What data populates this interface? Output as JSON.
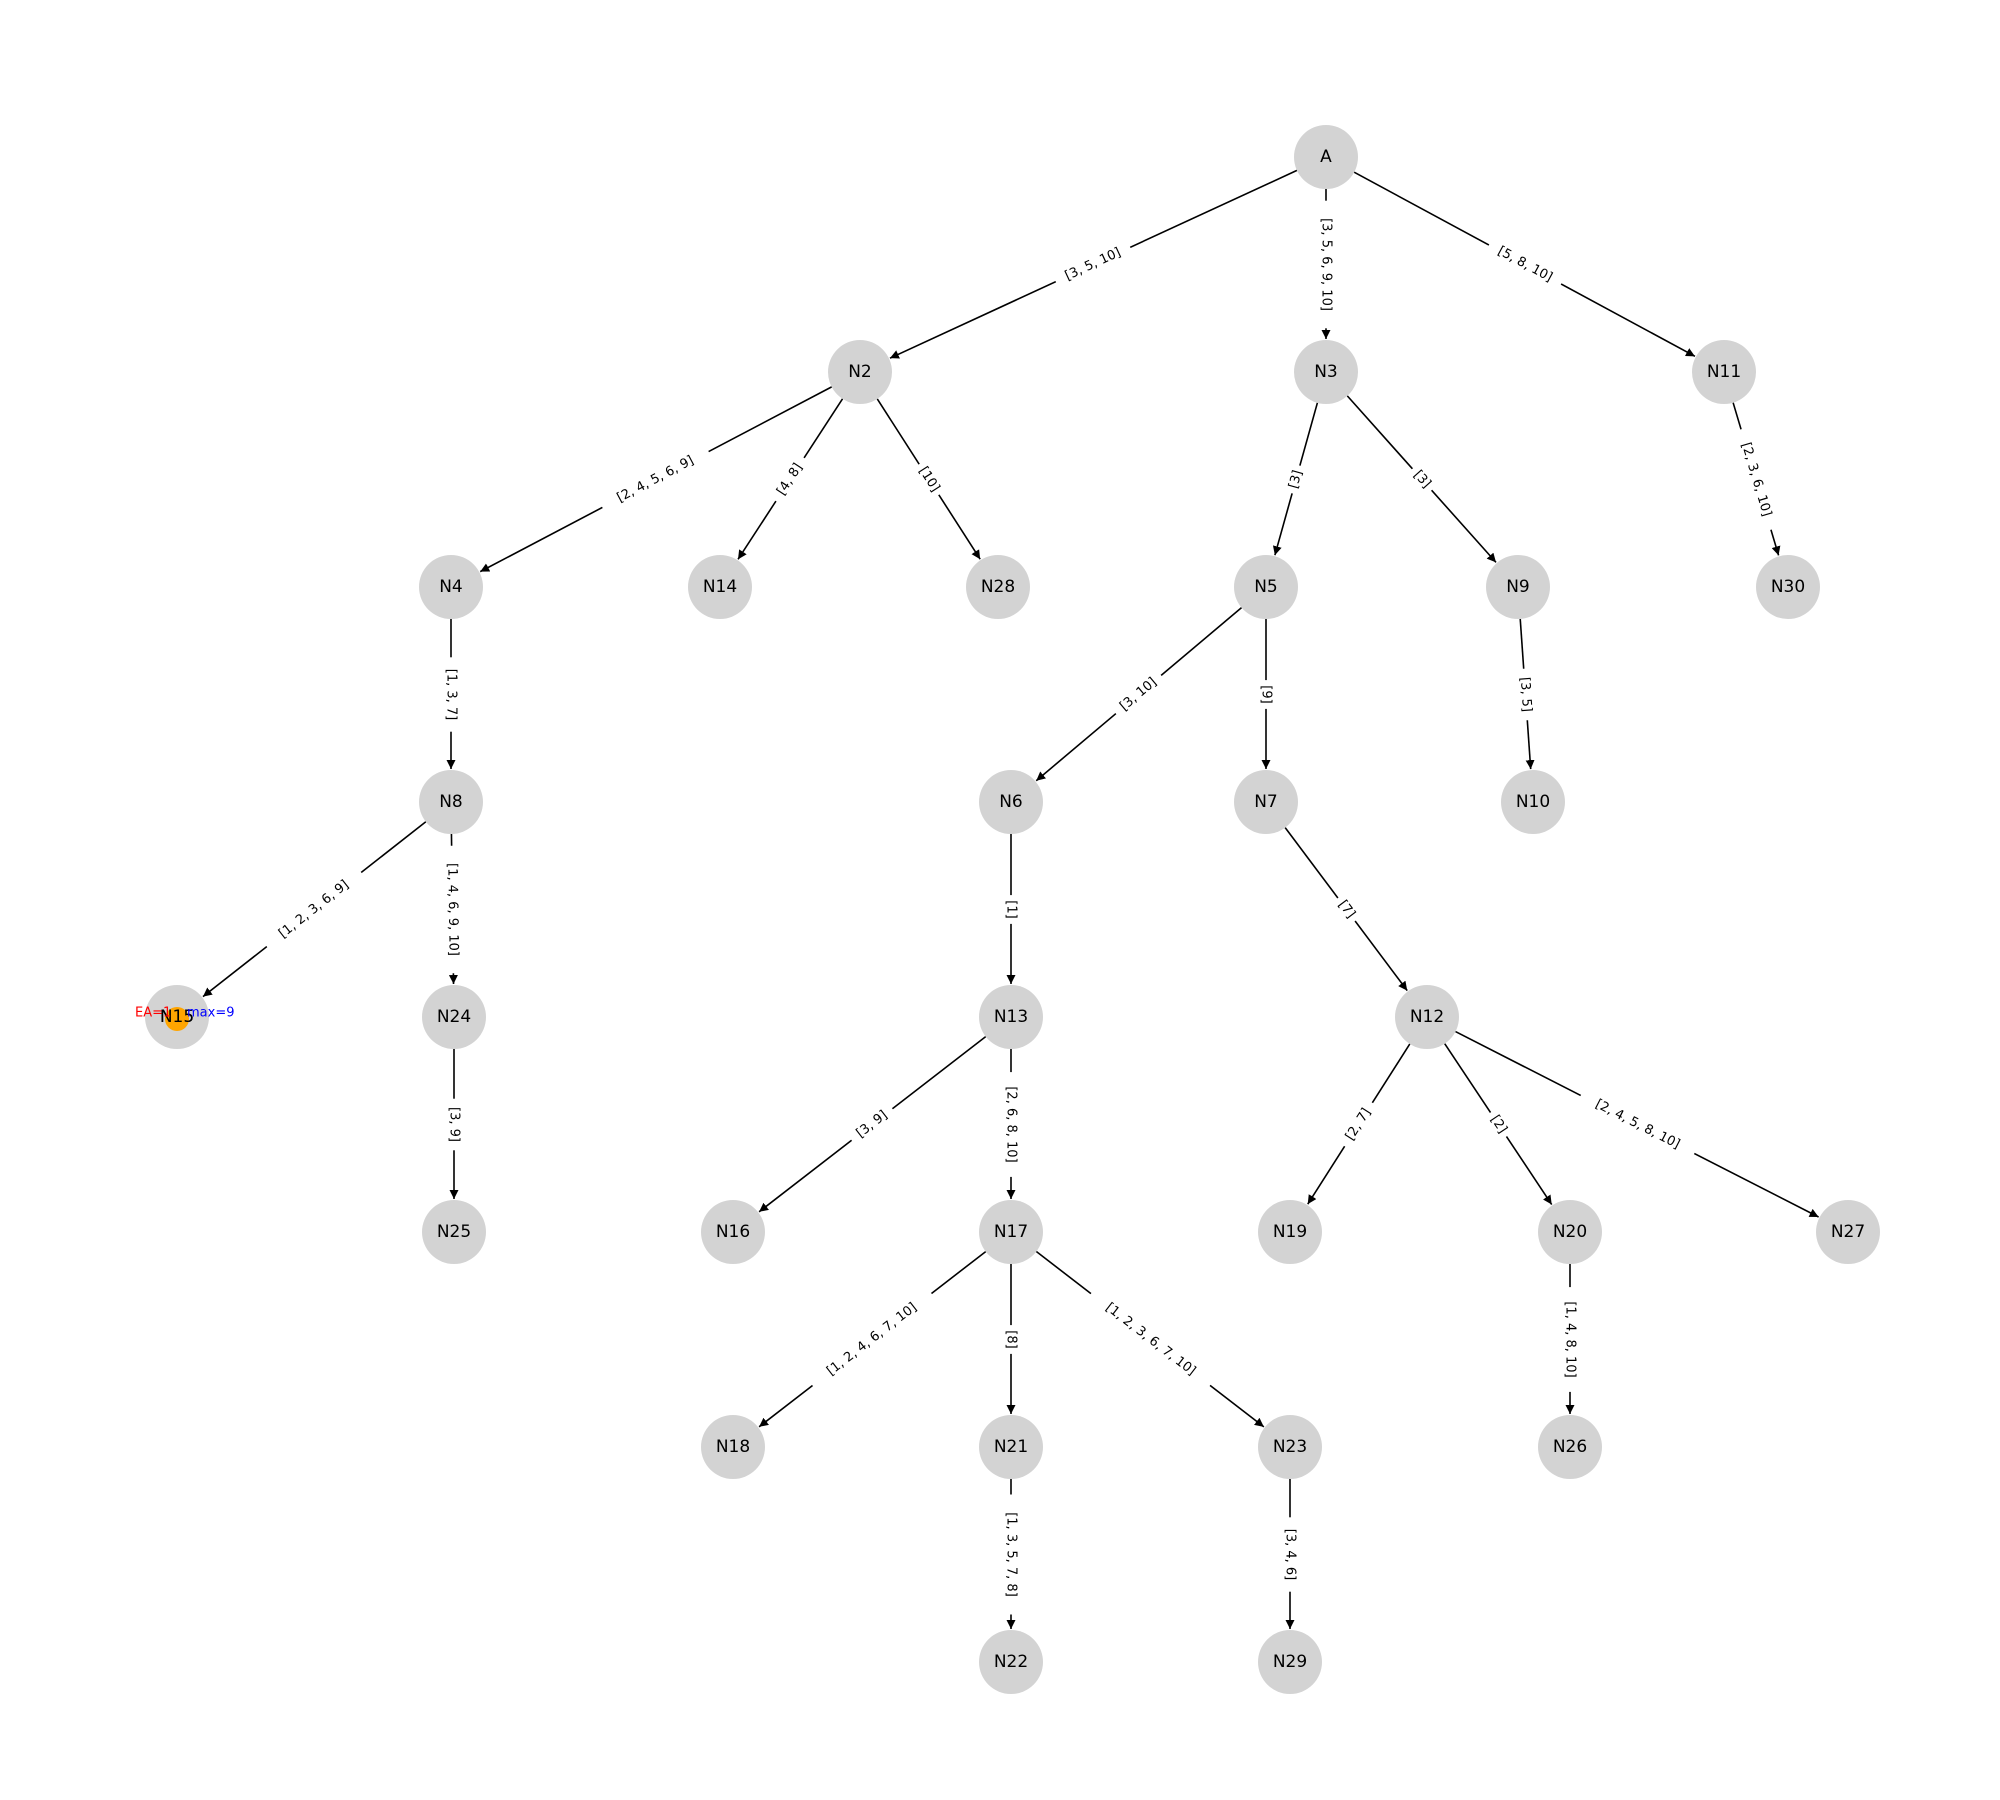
{
  "diagram": {
    "title": "",
    "colors": {
      "node_fill": "#d3d3d3",
      "highlight_node": "#ffa500",
      "edge": "#000000",
      "annotation_ea": "#ff0000",
      "annotation_max": "#0000ff"
    },
    "nodes": [
      "A",
      "N2",
      "N3",
      "N11",
      "N4",
      "N14",
      "N28",
      "N5",
      "N9",
      "N30",
      "N8",
      "N6",
      "N7",
      "N10",
      "N15",
      "N24",
      "N13",
      "N12",
      "N25",
      "N16",
      "N17",
      "N19",
      "N20",
      "N27",
      "N18",
      "N21",
      "N23",
      "N26",
      "N22",
      "N29"
    ],
    "edges": [
      {
        "from": "A",
        "to": "N2",
        "label": "[3, 5, 10]"
      },
      {
        "from": "A",
        "to": "N3",
        "label": "[3, 5, 6, 9, 10]"
      },
      {
        "from": "A",
        "to": "N11",
        "label": "[5, 8, 10]"
      },
      {
        "from": "N2",
        "to": "N4",
        "label": "[2, 4, 5, 6, 9]"
      },
      {
        "from": "N2",
        "to": "N14",
        "label": "[4, 8]"
      },
      {
        "from": "N2",
        "to": "N28",
        "label": "[10]"
      },
      {
        "from": "N3",
        "to": "N5",
        "label": "[3]"
      },
      {
        "from": "N3",
        "to": "N9",
        "label": "[3]"
      },
      {
        "from": "N11",
        "to": "N30",
        "label": "[2, 3, 6, 10]"
      },
      {
        "from": "N4",
        "to": "N8",
        "label": "[1, 3, 7]"
      },
      {
        "from": "N5",
        "to": "N6",
        "label": "[3, 10]"
      },
      {
        "from": "N5",
        "to": "N7",
        "label": "[9]"
      },
      {
        "from": "N9",
        "to": "N10",
        "label": "[3, 5]"
      },
      {
        "from": "N8",
        "to": "N15",
        "label": "[1, 2, 3, 6, 9]"
      },
      {
        "from": "N8",
        "to": "N24",
        "label": "[1, 4, 6, 9, 10]"
      },
      {
        "from": "N6",
        "to": "N13",
        "label": "[1]"
      },
      {
        "from": "N7",
        "to": "N12",
        "label": "[7]"
      },
      {
        "from": "N24",
        "to": "N25",
        "label": "[3, 9]"
      },
      {
        "from": "N13",
        "to": "N16",
        "label": "[3, 9]"
      },
      {
        "from": "N13",
        "to": "N17",
        "label": "[2, 6, 8, 10]"
      },
      {
        "from": "N12",
        "to": "N19",
        "label": "[2, 7]"
      },
      {
        "from": "N12",
        "to": "N20",
        "label": "[2]"
      },
      {
        "from": "N12",
        "to": "N27",
        "label": "[2, 4, 5, 8, 10]"
      },
      {
        "from": "N17",
        "to": "N18",
        "label": "[1, 2, 4, 6, 7, 10]"
      },
      {
        "from": "N17",
        "to": "N21",
        "label": "[8]"
      },
      {
        "from": "N17",
        "to": "N23",
        "label": "[1, 2, 3, 6, 7, 10]"
      },
      {
        "from": "N20",
        "to": "N26",
        "label": "[1, 4, 8, 10]"
      },
      {
        "from": "N21",
        "to": "N22",
        "label": "[1, 3, 5, 7, 8]"
      },
      {
        "from": "N23",
        "to": "N29",
        "label": "[3, 4, 6]"
      }
    ],
    "highlight": {
      "node": "N15",
      "ea_label": "EA=1",
      "max_label": "max=9"
    }
  }
}
